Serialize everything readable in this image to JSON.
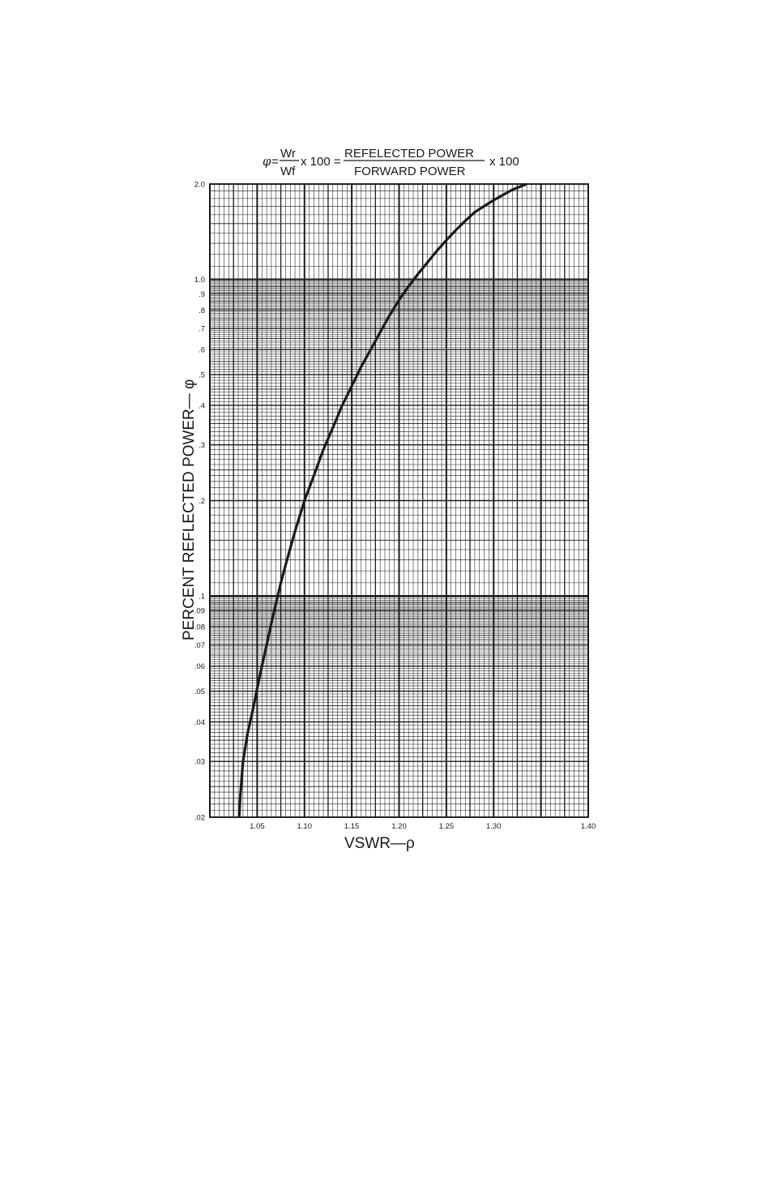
{
  "formula": {
    "phi": "φ",
    "equals": "=",
    "wr": "Wr",
    "wf": "Wf",
    "times100_a": "x 100 =",
    "numerator": "REFELECTED POWER",
    "denominator": "FORWARD POWER",
    "times100_b": "x 100"
  },
  "chart_data": {
    "type": "line",
    "title": "",
    "xlabel": "VSWR—ρ",
    "ylabel": "PERCENT REFLECTED POWER— φ",
    "xlim": [
      1.0,
      1.4
    ],
    "ylim": [
      0.02,
      2.0
    ],
    "yscale": "log",
    "grid": true,
    "x_ticks": [
      {
        "value": 1.05,
        "label": "1.05"
      },
      {
        "value": 1.1,
        "label": "1.10"
      },
      {
        "value": 1.15,
        "label": "1.15"
      },
      {
        "value": 1.2,
        "label": "1.20"
      },
      {
        "value": 1.25,
        "label": "1.25"
      },
      {
        "value": 1.3,
        "label": "1.30"
      },
      {
        "value": 1.4,
        "label": "1.40"
      }
    ],
    "y_ticks": [
      {
        "value": 2.0,
        "label": "2.0"
      },
      {
        "value": 1.0,
        "label": "1.0"
      },
      {
        "value": 0.9,
        "label": ".9"
      },
      {
        "value": 0.8,
        "label": ".8"
      },
      {
        "value": 0.7,
        "label": ".7"
      },
      {
        "value": 0.6,
        "label": ".6"
      },
      {
        "value": 0.5,
        "label": ".5"
      },
      {
        "value": 0.4,
        "label": ".4"
      },
      {
        "value": 0.3,
        "label": ".3"
      },
      {
        "value": 0.2,
        "label": ".2"
      },
      {
        "value": 0.1,
        "label": ".1"
      },
      {
        "value": 0.09,
        "label": ".09"
      },
      {
        "value": 0.08,
        "label": ".08"
      },
      {
        "value": 0.07,
        "label": ".07"
      },
      {
        "value": 0.06,
        "label": ".06"
      },
      {
        "value": 0.05,
        "label": ".05"
      },
      {
        "value": 0.04,
        "label": ".04"
      },
      {
        "value": 0.03,
        "label": ".03"
      },
      {
        "value": 0.02,
        "label": ".02"
      }
    ],
    "series": [
      {
        "x": [
          1.031,
          1.032,
          1.035,
          1.04,
          1.045,
          1.05,
          1.055,
          1.06,
          1.065,
          1.07,
          1.075,
          1.08,
          1.09,
          1.1,
          1.11,
          1.12,
          1.13,
          1.14,
          1.15,
          1.16,
          1.17,
          1.18,
          1.19,
          1.2,
          1.21,
          1.22,
          1.23,
          1.24,
          1.25,
          1.26,
          1.27,
          1.28,
          1.3,
          1.32,
          1.335
        ],
        "values": [
          0.02,
          0.023,
          0.03,
          0.037,
          0.043,
          0.051,
          0.06,
          0.07,
          0.082,
          0.095,
          0.11,
          0.125,
          0.16,
          0.2,
          0.24,
          0.29,
          0.34,
          0.4,
          0.46,
          0.53,
          0.6,
          0.68,
          0.77,
          0.86,
          0.95,
          1.04,
          1.13,
          1.23,
          1.33,
          1.43,
          1.53,
          1.63,
          1.78,
          1.92,
          2.0
        ]
      }
    ],
    "colors": {
      "line": "#1a1a1a",
      "grid": "#1a1a1a",
      "background": "#ffffff"
    }
  }
}
